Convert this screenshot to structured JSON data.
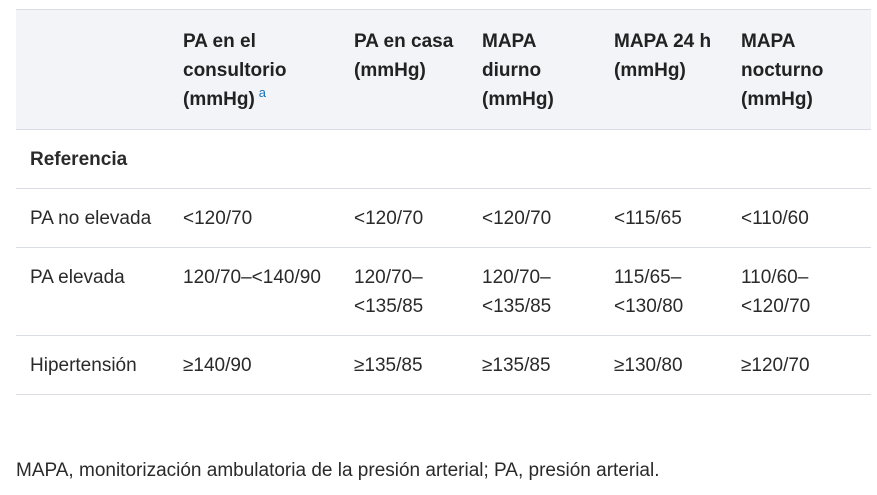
{
  "table": {
    "headers": [
      "",
      "PA en el consultorio (mmHg)",
      "PA en casa (mmHg)",
      "MAPA diurno (mmHg)",
      "MAPA 24 h (mmHg)",
      "MAPA nocturno (mmHg)"
    ],
    "footnote_marker": "a",
    "section_label": "Referencia",
    "rows": [
      [
        "PA no elevada",
        "<120/70",
        "<120/70",
        "<120/70",
        "<115/65",
        "<110/60"
      ],
      [
        "PA elevada",
        "120/70–<140/90",
        "120/70–<135/85",
        "120/70–<135/85",
        "115/65–<130/80",
        "110/60–<120/70"
      ],
      [
        "Hipertensión",
        "≥140/90",
        "≥135/85",
        "≥135/85",
        "≥130/80",
        "≥120/70"
      ]
    ]
  },
  "footer_note": "MAPA, monitorización ambulatoria de la presión arterial; PA, presión arterial.",
  "colors": {
    "header_background": "#f2f4f8",
    "border": "#d9dde3",
    "footnote_link": "#1a73b8"
  }
}
